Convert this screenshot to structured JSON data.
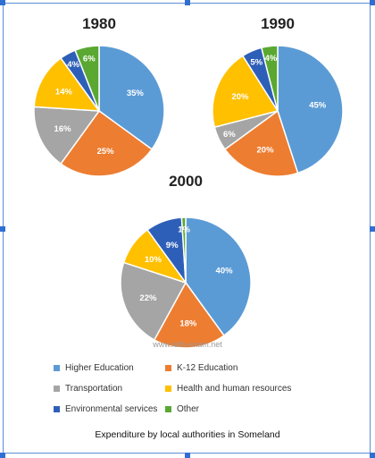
{
  "chart_data": {
    "type": "pie",
    "title": "Expenditure by local authorities in Someland",
    "categories": [
      "Higher Education",
      "K-12 Education",
      "Transportation",
      "Health and human resources",
      "Environmental services",
      "Other"
    ],
    "colors": [
      "#5b9bd5",
      "#ed7d31",
      "#a5a5a5",
      "#ffc000",
      "#2e5fb8",
      "#5aa832"
    ],
    "legend_position": "bottom",
    "series": [
      {
        "name": "1980",
        "values": [
          35,
          25,
          16,
          14,
          4,
          6
        ]
      },
      {
        "name": "1990",
        "values": [
          45,
          20,
          6,
          20,
          5,
          4
        ]
      },
      {
        "name": "2000",
        "values": [
          40,
          18,
          22,
          10,
          9,
          1
        ]
      }
    ]
  },
  "watermark": "www.ielts-exam.net",
  "caption": "Expenditure by local authorities in Someland"
}
